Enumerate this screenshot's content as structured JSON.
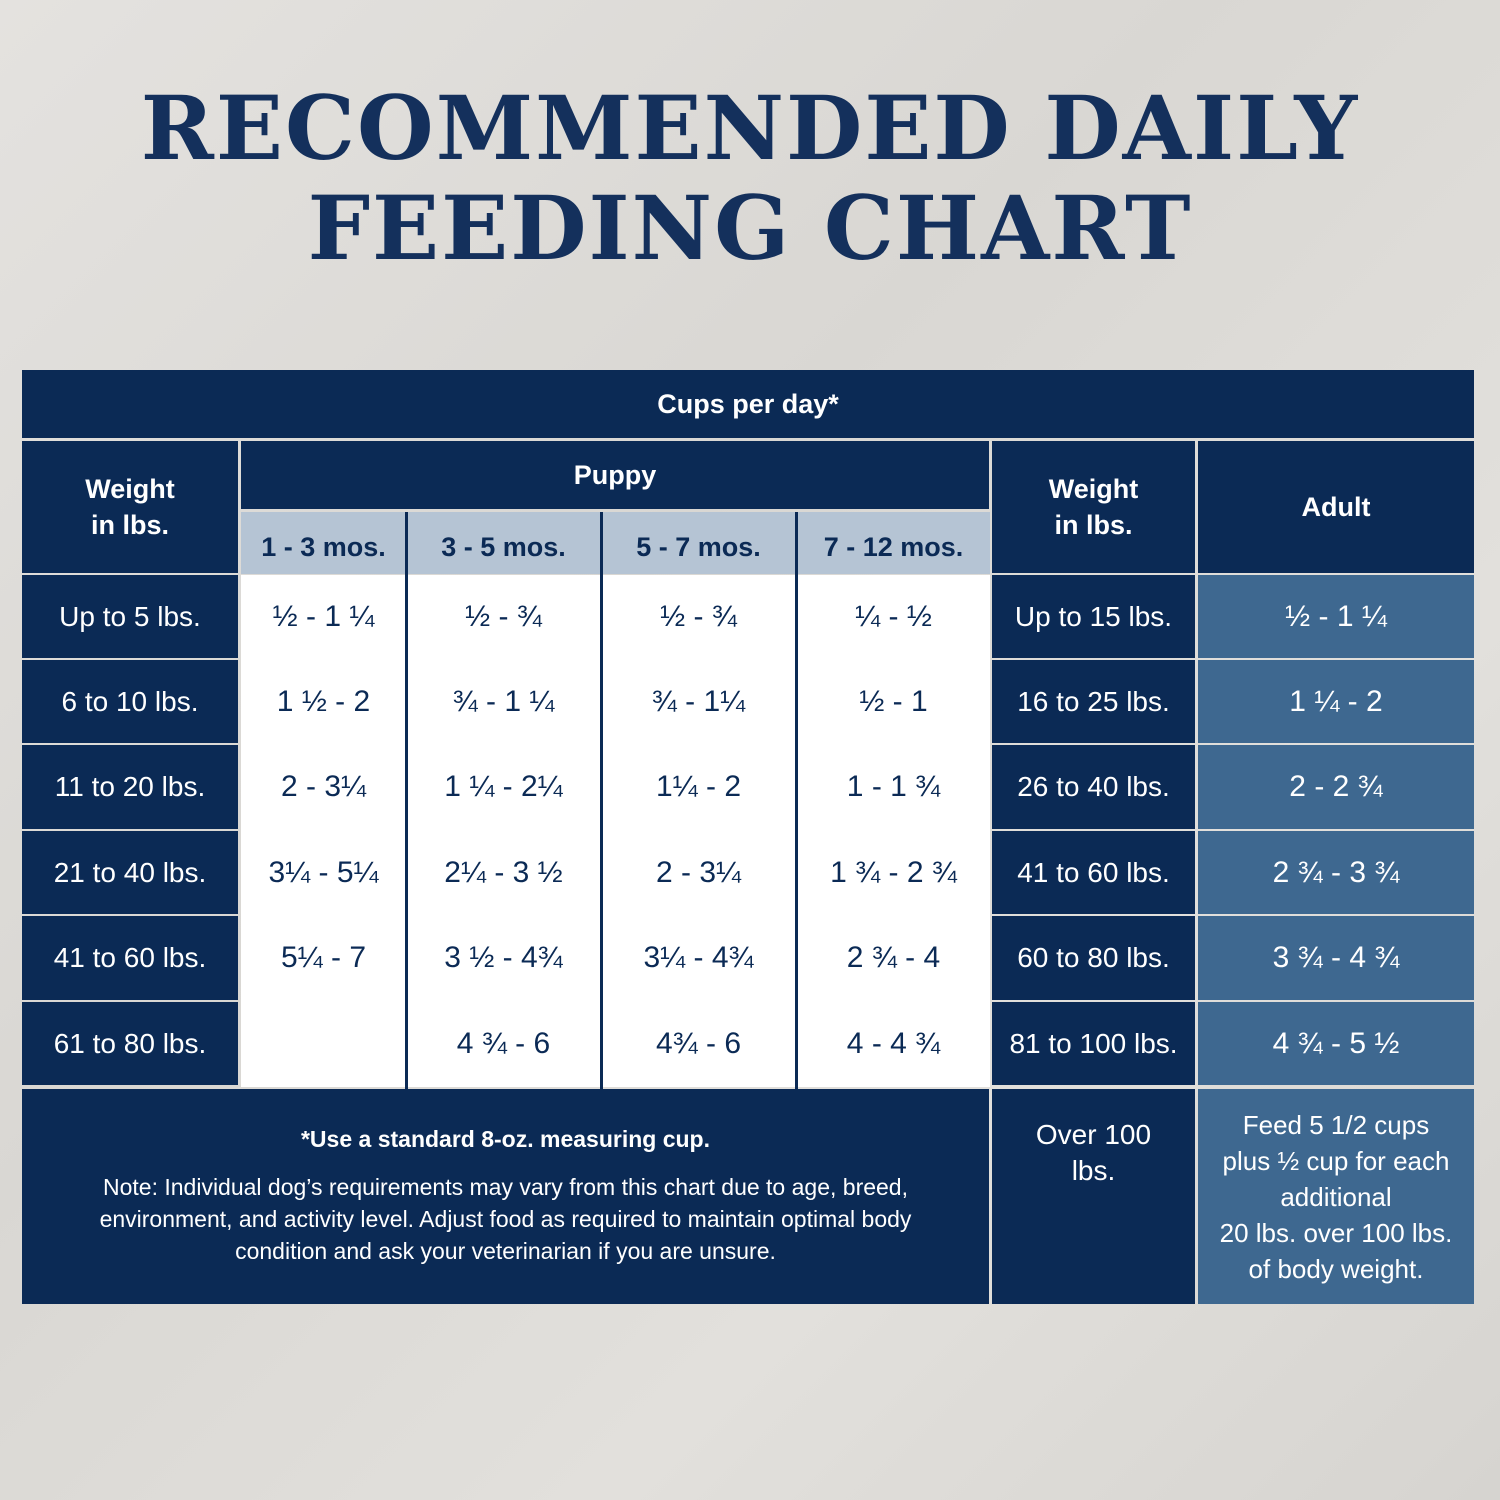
{
  "title": {
    "line1": "RECOMMENDED DAILY",
    "line2": "FEEDING CHART"
  },
  "colors": {
    "navy": "#0b2a55",
    "steel": "#3e6890",
    "subheader": "#b5c4d4",
    "title": "#14305c"
  },
  "table": {
    "cups_header": "Cups per day*",
    "weight_header": "Weight\nin lbs.",
    "puppy_header": "Puppy",
    "puppy_ages": [
      "1 - 3 mos.",
      "3 - 5 mos.",
      "5 - 7 mos.",
      "7 - 12 mos."
    ],
    "adult_weight_header": "Weight\nin lbs.",
    "adult_header": "Adult",
    "rows": [
      {
        "weight": "Up to 5 lbs.",
        "puppy": [
          "½  - 1 ¼",
          "½  - ¾",
          "½ - ¾",
          "¼  - ½"
        ],
        "adult_weight": "Up to 15 lbs.",
        "adult": "½  - 1 ¼"
      },
      {
        "weight": "6 to 10 lbs.",
        "puppy": [
          "1 ½  - 2",
          "¾ - 1 ¼",
          "¾ - 1¼",
          "½ - 1"
        ],
        "adult_weight": "16 to 25 lbs.",
        "adult": "1 ¼ - 2"
      },
      {
        "weight": "11 to 20 lbs.",
        "puppy": [
          "2  - 3¼",
          "1 ¼  - 2¼",
          "1¼ - 2",
          "1 - 1 ¾"
        ],
        "adult_weight": "26 to 40 lbs.",
        "adult": "2 - 2 ¾"
      },
      {
        "weight": "21 to 40 lbs.",
        "puppy": [
          "3¼ - 5¼",
          "2¼ - 3 ½",
          "2 - 3¼",
          "1 ¾ - 2 ¾"
        ],
        "adult_weight": "41 to 60 lbs.",
        "adult": "2 ¾ - 3 ¾"
      },
      {
        "weight": "41 to 60 lbs.",
        "puppy": [
          "5¼ - 7",
          "3 ½  - 4¾",
          "3¼  - 4¾",
          "2 ¾  - 4"
        ],
        "adult_weight": "60 to 80 lbs.",
        "adult": "3 ¾  - 4 ¾"
      },
      {
        "weight": "61 to 80 lbs.",
        "puppy": [
          "",
          "4 ¾  - 6",
          "4¾ - 6",
          "4 - 4 ¾"
        ],
        "adult_weight": "81 to 100 lbs.",
        "adult": "4 ¾  - 5 ½"
      }
    ],
    "footer": {
      "cup_note": "*Use a standard 8-oz. measuring cup.",
      "note": "Note: Individual dog’s requirements may vary from this chart due to age, breed, environment, and activity level. Adjust food as required to maintain optimal body condition and ask your veterinarian if you are unsure.",
      "over_weight": "Over 100\nlbs.",
      "over_adult": "Feed 5 1/2 cups\nplus ½ cup for each\nadditional\n20 lbs. over 100 lbs.\nof body weight."
    }
  }
}
